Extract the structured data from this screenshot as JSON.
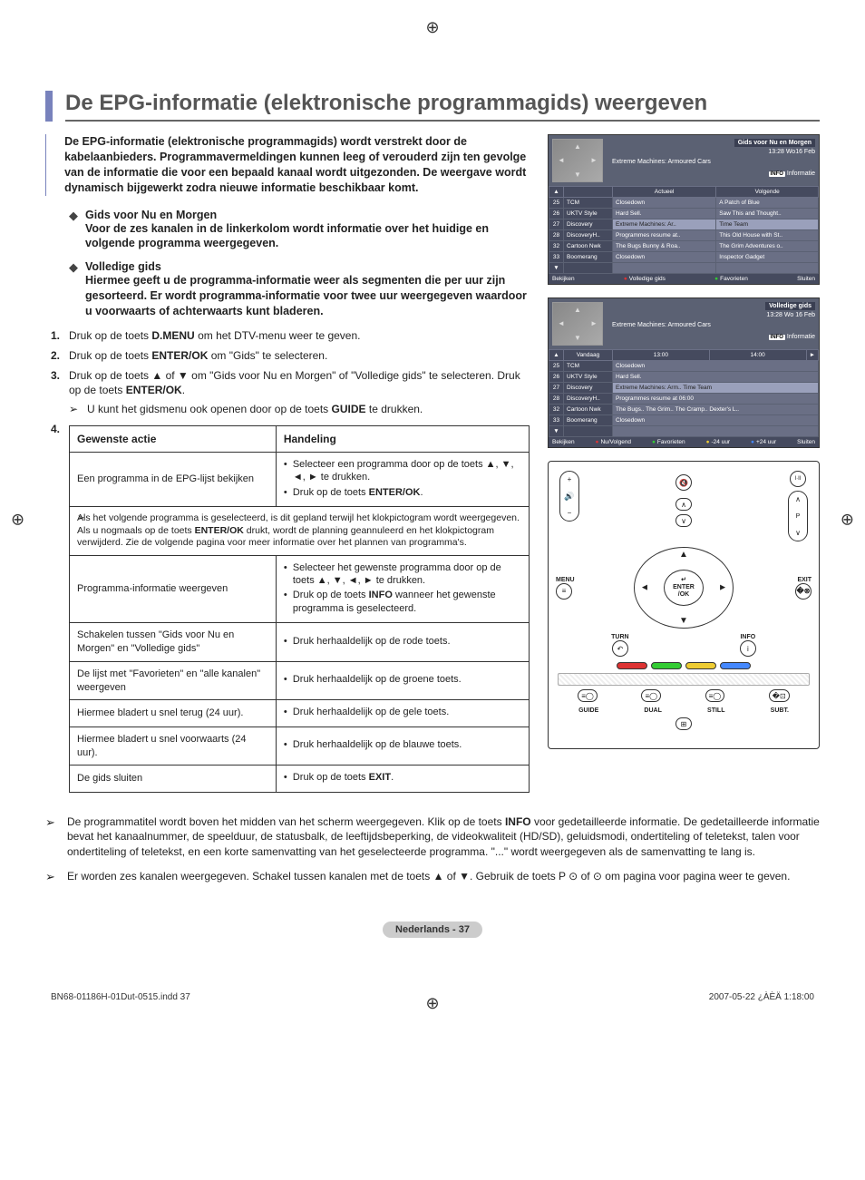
{
  "title": "De EPG-informatie (elektronische programmagids) weergeven",
  "intro": "De EPG-informatie (elektronische programmagids) wordt verstrekt door de kabelaanbieders. Programmavermeldingen kunnen leeg of verouderd zijn ten gevolge van de informatie die voor een bepaald kanaal wordt uitgezonden. De weergave wordt dynamisch bijgewerkt zodra nieuwe informatie beschikbaar komt.",
  "diamonds": [
    {
      "head": "Gids voor Nu en Morgen",
      "text": "Voor de zes kanalen in de linkerkolom wordt informatie over het huidige en volgende programma weergegeven."
    },
    {
      "head": "Volledige gids",
      "text": "Hiermee geeft u de programma-informatie weer als segmenten die per uur zijn gesorteerd. Er wordt programma-informatie voor twee uur weergegeven waardoor u voorwaarts of achterwaarts kunt bladeren."
    }
  ],
  "steps": {
    "s1": "Druk op de toets <b>D.MENU</b> om het DTV-menu weer te geven.",
    "s2": "Druk op de toets <b>ENTER/OK</b> om \"Gids\" te selecteren.",
    "s3": "Druk op de toets ▲ of ▼ om \"Gids voor Nu en Morgen\" of \"Volledige gids\" te selecteren. Druk op de toets <b>ENTER/OK</b>.",
    "s3sub": "U kunt het gidsmenu ook openen door op de toets <b>GUIDE</b> te drukken.",
    "s4num": "4."
  },
  "table": {
    "h1": "Gewenste actie",
    "h2": "Handeling",
    "rows": [
      {
        "a": "Een programma in de EPG-lijst bekijken",
        "b": [
          "Selecteer een programma door op de toets ▲, ▼, ◄, ► te drukken.",
          "Druk op de toets <b>ENTER/OK</b>."
        ]
      }
    ],
    "note": "Als het volgende programma is geselecteerd, is dit gepland terwijl het klokpictogram wordt weergegeven. Als u nogmaals op de toets <b>ENTER/OK</b> drukt, wordt de planning geannuleerd en het klokpictogram verwijderd. Zie de volgende pagina voor meer informatie over het plannen van programma's.",
    "rows2": [
      {
        "a": "Programma-informatie weergeven",
        "b": [
          "Selecteer het gewenste programma door op de toets ▲, ▼, ◄, ► te drukken.",
          "Druk op de toets <b>INFO</b> wanneer het gewenste programma is geselecteerd."
        ]
      },
      {
        "a": "Schakelen tussen \"Gids voor Nu en Morgen\" en \"Volledige gids\"",
        "b": [
          "Druk herhaaldelijk op de rode toets."
        ]
      },
      {
        "a": "De lijst met \"Favorieten\" en \"alle kanalen\" weergeven",
        "b": [
          "Druk herhaaldelijk op de groene toets."
        ]
      },
      {
        "a": "Hiermee bladert u snel terug (24 uur).",
        "b": [
          "Druk herhaaldelijk op de gele toets."
        ]
      },
      {
        "a": "Hiermee bladert u snel voorwaarts (24 uur).",
        "b": [
          "Druk herhaaldelijk op de blauwe toets."
        ]
      },
      {
        "a": "De gids sluiten",
        "b": [
          "Druk op de toets <b>EXIT</b>."
        ]
      }
    ]
  },
  "bottom_notes": [
    "De programmatitel wordt boven het midden van het scherm weergegeven. Klik op de toets <b>INFO</b> voor gedetailleerde informatie. De gedetailleerde informatie bevat het kanaalnummer, de speelduur, de statusbalk, de leeftijdsbeperking, de videokwaliteit (HD/SD), geluidsmodi, ondertiteling of teletekst, talen voor ondertiteling of teletekst, en een korte samenvatting van het geselecteerde programma. \"...\" wordt weergegeven als de samenvatting te lang is.",
    "Er worden zes kanalen weergegeven. Schakel tussen kanalen met de toets ▲ of ▼. Gebruik de toets P ⊙ of ⊙ om pagina voor pagina weer te geven."
  ],
  "page_label": "Nederlands - 37",
  "doc_footer_left": "BN68-01186H-01Dut-0515.indd   37",
  "doc_footer_right": "2007-05-22   ¿ÀÈÄ 1:18:00",
  "epg1": {
    "title": "Gids voor Nu en Morgen",
    "time": "13:28 Wo16 Feb",
    "prog": "Extreme Machines: Armoured Cars",
    "info": "Informatie",
    "cols": [
      "Actueel",
      "Volgende"
    ],
    "rows": [
      [
        "25",
        "TCM",
        "Closedown",
        "A Patch of Blue"
      ],
      [
        "26",
        "UKTV Style",
        "Hard Sell.",
        "Saw This and Thought.."
      ],
      [
        "27",
        "Discovery",
        "Extreme Machines: Ar..",
        "Time Team"
      ],
      [
        "28",
        "DiscoveryH..",
        "Programmes resume at..",
        "This Old House with St.."
      ],
      [
        "32",
        "Cartoon Nwk",
        "The Bugs Bunny & Roa..",
        "The Grim Adventures o.."
      ],
      [
        "33",
        "Boomerang",
        "Closedown",
        "Inspector Gadget"
      ]
    ],
    "foot": [
      "Bekijken",
      "Volledige gids",
      "Favorieten",
      "Sluiten"
    ]
  },
  "epg2": {
    "title": "Volledige gids",
    "time": "13:28 Wo 16 Feb",
    "prog": "Extreme Machines: Armoured Cars",
    "info": "Informatie",
    "cols": [
      "Vandaag",
      "13:00",
      "14:00"
    ],
    "rows": [
      [
        "25",
        "TCM",
        "Closedown"
      ],
      [
        "26",
        "UKTV Style",
        "Hard Sell."
      ],
      [
        "27",
        "Discovery",
        "Extreme Machines: Arm..  Time Team"
      ],
      [
        "28",
        "DiscoveryH..",
        "Programmes resume at 06:00"
      ],
      [
        "32",
        "Cartoon Nwk",
        "The Bugs..   The Grim..   The Cramp..  Dexter's L.."
      ],
      [
        "33",
        "Boomerang",
        "Closedown"
      ]
    ],
    "foot": [
      "Bekijken",
      "Nu/Volgend",
      "Favorieten",
      "-24 uur",
      "+24 uur",
      "Sluiten"
    ]
  },
  "remote": {
    "menu": "MENU",
    "exit": "EXIT",
    "enter": "ENTER",
    "ok": "/OK",
    "return": "TURN",
    "info": "INFO",
    "guide": "GUIDE",
    "dual": "DUAL",
    "still": "STILL",
    "subt": "SUBT."
  }
}
